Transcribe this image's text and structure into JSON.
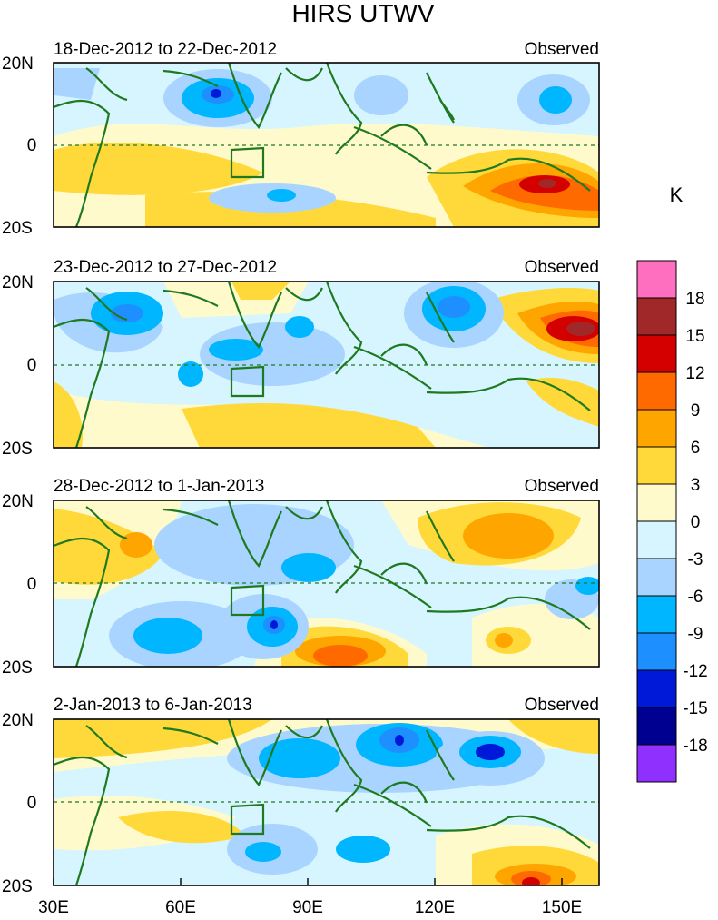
{
  "title": "HIRS UTWV",
  "units": "K",
  "corner_label": "Observed",
  "x_ticks": [
    "30E",
    "60E",
    "90E",
    "120E",
    "150E"
  ],
  "y_ticks": [
    "20N",
    "0",
    "20S"
  ],
  "panels": [
    {
      "period": "18-Dec-2012 to 22-Dec-2012"
    },
    {
      "period": "23-Dec-2012 to 27-Dec-2012"
    },
    {
      "period": "28-Dec-2012 to 1-Jan-2013"
    },
    {
      "period": "2-Jan-2013 to 6-Jan-2013"
    }
  ],
  "colorbar": {
    "labels": [
      "18",
      "15",
      "12",
      "9",
      "6",
      "3",
      "0",
      "-3",
      "-6",
      "-9",
      "-12",
      "-15",
      "-18"
    ],
    "colors": [
      "#ff6fc0",
      "#a02828",
      "#d40000",
      "#ff6a00",
      "#ffa500",
      "#ffd93a",
      "#fffacc",
      "#d6f5ff",
      "#a8d4ff",
      "#00b6ff",
      "#1e8fff",
      "#0018d8",
      "#000090",
      "#9030ff"
    ]
  },
  "theme": {
    "land": "#1f7a1f"
  }
}
